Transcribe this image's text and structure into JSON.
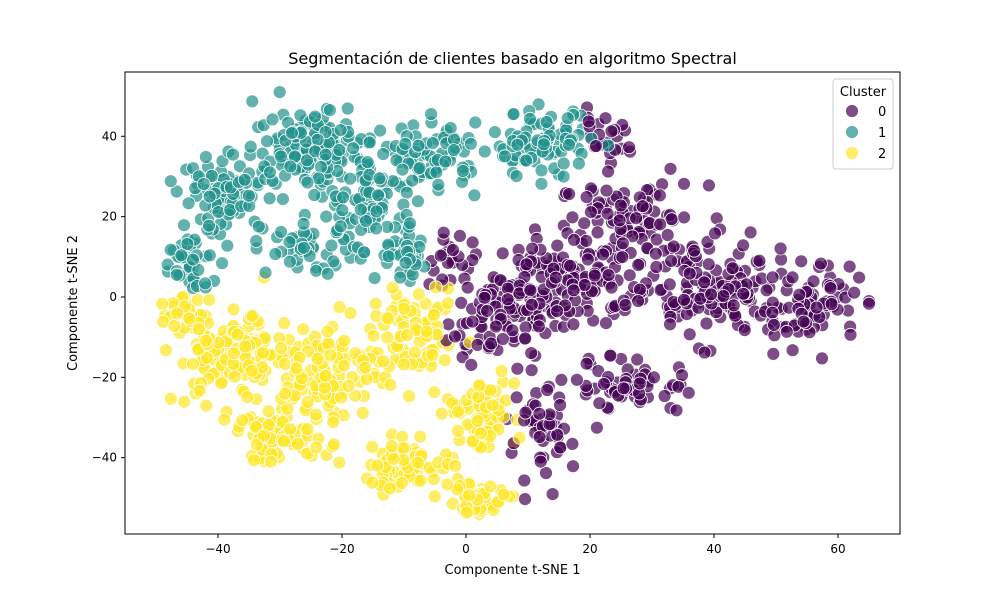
{
  "chart_data": {
    "type": "scatter",
    "title": "Segmentación de clientes basado en algoritmo Spectral",
    "xlabel": "Componente t-SNE 1",
    "ylabel": "Componente t-SNE 2",
    "xlim": [
      -55,
      70
    ],
    "ylim": [
      -59,
      56
    ],
    "xticks": [
      -40,
      -20,
      0,
      20,
      40,
      60
    ],
    "xtick_labels": [
      "−40",
      "−20",
      "0",
      "20",
      "40",
      "60"
    ],
    "yticks": [
      -40,
      -20,
      0,
      20,
      40
    ],
    "ytick_labels": [
      "−40",
      "−20",
      "0",
      "20",
      "40"
    ],
    "grid": false,
    "legend": {
      "title": "Cluster",
      "position": "top-right"
    },
    "colors": {
      "0": "#440154",
      "1": "#21918c",
      "2": "#fde725"
    },
    "series": [
      {
        "name": "0",
        "regions": [
          {
            "cx": 27,
            "cy": 20,
            "rx": 12,
            "ry": 8,
            "n": 80
          },
          {
            "cx": 17,
            "cy": 5,
            "rx": 12,
            "ry": 12,
            "n": 150
          },
          {
            "cx": 5,
            "cy": -5,
            "rx": 8,
            "ry": 10,
            "n": 90
          },
          {
            "cx": 38,
            "cy": 2,
            "rx": 14,
            "ry": 12,
            "n": 140
          },
          {
            "cx": 55,
            "cy": -2,
            "rx": 9,
            "ry": 10,
            "n": 80
          },
          {
            "cx": 27,
            "cy": -22,
            "rx": 10,
            "ry": 7,
            "n": 60
          },
          {
            "cx": 12,
            "cy": -35,
            "rx": 5,
            "ry": 12,
            "n": 50
          },
          {
            "cx": 22,
            "cy": 38,
            "rx": 5,
            "ry": 7,
            "n": 25
          },
          {
            "cx": -3,
            "cy": 10,
            "rx": 4,
            "ry": 6,
            "n": 20
          }
        ]
      },
      {
        "name": "1",
        "regions": [
          {
            "cx": -38,
            "cy": 25,
            "rx": 8,
            "ry": 10,
            "n": 100
          },
          {
            "cx": -25,
            "cy": 38,
            "rx": 9,
            "ry": 10,
            "n": 130
          },
          {
            "cx": -15,
            "cy": 25,
            "rx": 7,
            "ry": 12,
            "n": 90
          },
          {
            "cx": -45,
            "cy": 8,
            "rx": 4,
            "ry": 8,
            "n": 40
          },
          {
            "cx": -5,
            "cy": 35,
            "rx": 7,
            "ry": 8,
            "n": 80
          },
          {
            "cx": 12,
            "cy": 38,
            "rx": 8,
            "ry": 8,
            "n": 90
          },
          {
            "cx": -25,
            "cy": 12,
            "rx": 7,
            "ry": 6,
            "n": 50
          },
          {
            "cx": -10,
            "cy": 10,
            "rx": 5,
            "ry": 6,
            "n": 40
          }
        ]
      },
      {
        "name": "2",
        "regions": [
          {
            "cx": -38,
            "cy": -15,
            "rx": 9,
            "ry": 12,
            "n": 130
          },
          {
            "cx": -30,
            "cy": -35,
            "rx": 8,
            "ry": 6,
            "n": 80
          },
          {
            "cx": -22,
            "cy": -18,
            "rx": 8,
            "ry": 12,
            "n": 110
          },
          {
            "cx": -8,
            "cy": -10,
            "rx": 7,
            "ry": 10,
            "n": 90
          },
          {
            "cx": -10,
            "cy": -42,
            "rx": 8,
            "ry": 6,
            "n": 60
          },
          {
            "cx": 2,
            "cy": -30,
            "rx": 6,
            "ry": 10,
            "n": 70
          },
          {
            "cx": 2,
            "cy": -50,
            "rx": 6,
            "ry": 4,
            "n": 40
          },
          {
            "cx": -45,
            "cy": -3,
            "rx": 3,
            "ry": 5,
            "n": 25
          }
        ]
      }
    ]
  }
}
